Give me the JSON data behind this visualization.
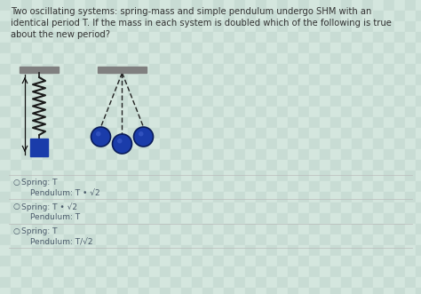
{
  "title_text": "Two oscillating systems: spring-mass and simple pendulum undergo SHM with an\nidentical period T. If the mass in each system is doubled which of the following is true\nabout the new period?",
  "bg_color": "#cde0d8",
  "option1_spring": "Spring: T",
  "option1_pendulum": "Pendulum: T • √2",
  "option2_spring": "Spring: T • √2",
  "option2_pendulum": "Pendulum: T",
  "option3_spring": "Spring: T",
  "option3_pendulum": "Pendulum: T/√2",
  "divider_color": "#bbbbbb",
  "text_color": "#4a5a6a",
  "title_color": "#333333",
  "spring_color": "#1a1a1a",
  "mass_color": "#1a3caa",
  "wall_color": "#808080",
  "bob_color": "#1a3caa",
  "bob_edge": "#0a1c5a",
  "arrow_color": "#111111",
  "string_color": "#222222",
  "fig_w": 4.74,
  "fig_h": 3.31,
  "dpi": 100
}
